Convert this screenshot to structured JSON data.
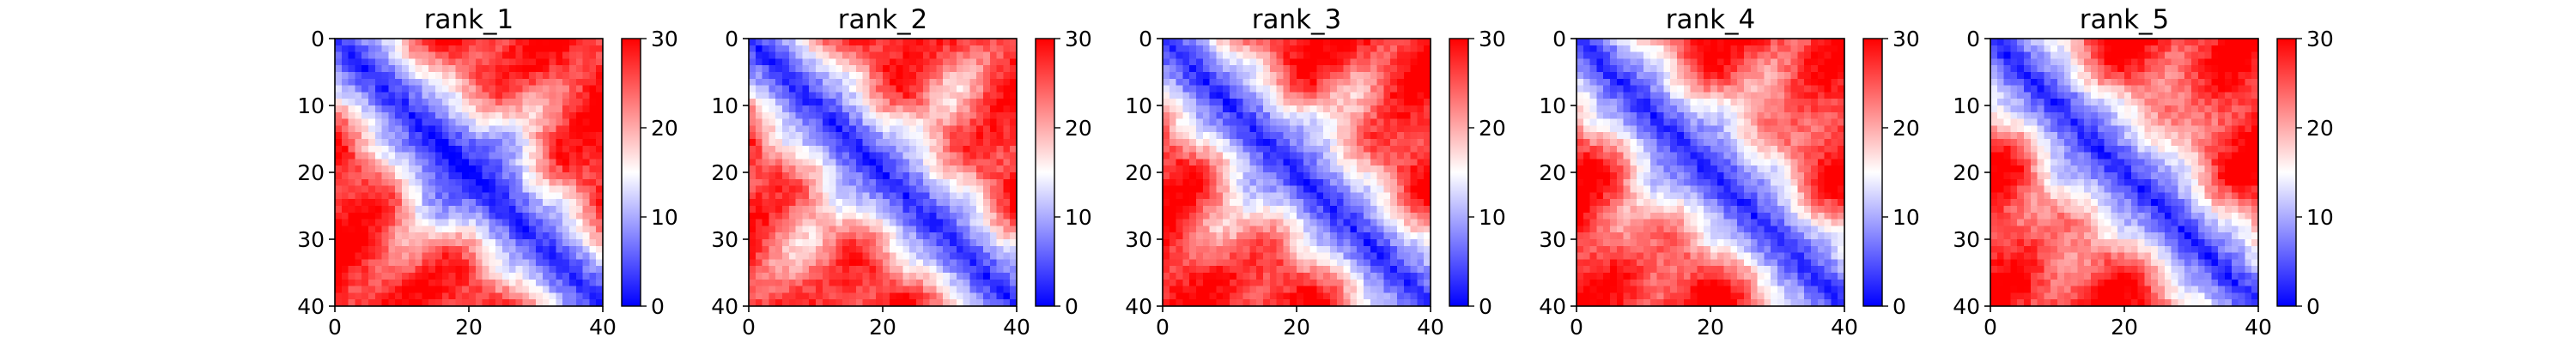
{
  "chart_data": [
    {
      "type": "heatmap",
      "title": "rank_1",
      "x_ticks": [
        0,
        20,
        40
      ],
      "y_ticks": [
        0,
        10,
        20,
        30,
        40
      ],
      "xlim": [
        0,
        40
      ],
      "ylim": [
        40,
        0
      ],
      "size": 40,
      "colorbar": {
        "ticks": [
          0,
          10,
          20,
          30
        ],
        "range": [
          0,
          30
        ],
        "colormap": "bwr"
      }
    },
    {
      "type": "heatmap",
      "title": "rank_2",
      "x_ticks": [
        0,
        20,
        40
      ],
      "y_ticks": [
        0,
        10,
        20,
        30,
        40
      ],
      "xlim": [
        0,
        40
      ],
      "ylim": [
        40,
        0
      ],
      "size": 40,
      "colorbar": {
        "ticks": [
          0,
          10,
          20,
          30
        ],
        "range": [
          0,
          30
        ],
        "colormap": "bwr"
      }
    },
    {
      "type": "heatmap",
      "title": "rank_3",
      "x_ticks": [
        0,
        20,
        40
      ],
      "y_ticks": [
        0,
        10,
        20,
        30,
        40
      ],
      "xlim": [
        0,
        40
      ],
      "ylim": [
        40,
        0
      ],
      "size": 40,
      "colorbar": {
        "ticks": [
          0,
          10,
          20,
          30
        ],
        "range": [
          0,
          30
        ],
        "colormap": "bwr"
      }
    },
    {
      "type": "heatmap",
      "title": "rank_4",
      "x_ticks": [
        0,
        20,
        40
      ],
      "y_ticks": [
        0,
        10,
        20,
        30,
        40
      ],
      "xlim": [
        0,
        40
      ],
      "ylim": [
        40,
        0
      ],
      "size": 40,
      "colorbar": {
        "ticks": [
          0,
          10,
          20,
          30
        ],
        "range": [
          0,
          30
        ],
        "colormap": "bwr"
      }
    },
    {
      "type": "heatmap",
      "title": "rank_5",
      "x_ticks": [
        0,
        20,
        40
      ],
      "y_ticks": [
        0,
        10,
        20,
        30,
        40
      ],
      "xlim": [
        0,
        40
      ],
      "ylim": [
        40,
        0
      ],
      "size": 40,
      "colorbar": {
        "ticks": [
          0,
          10,
          20,
          30
        ],
        "range": [
          0,
          30
        ],
        "colormap": "bwr"
      }
    }
  ]
}
